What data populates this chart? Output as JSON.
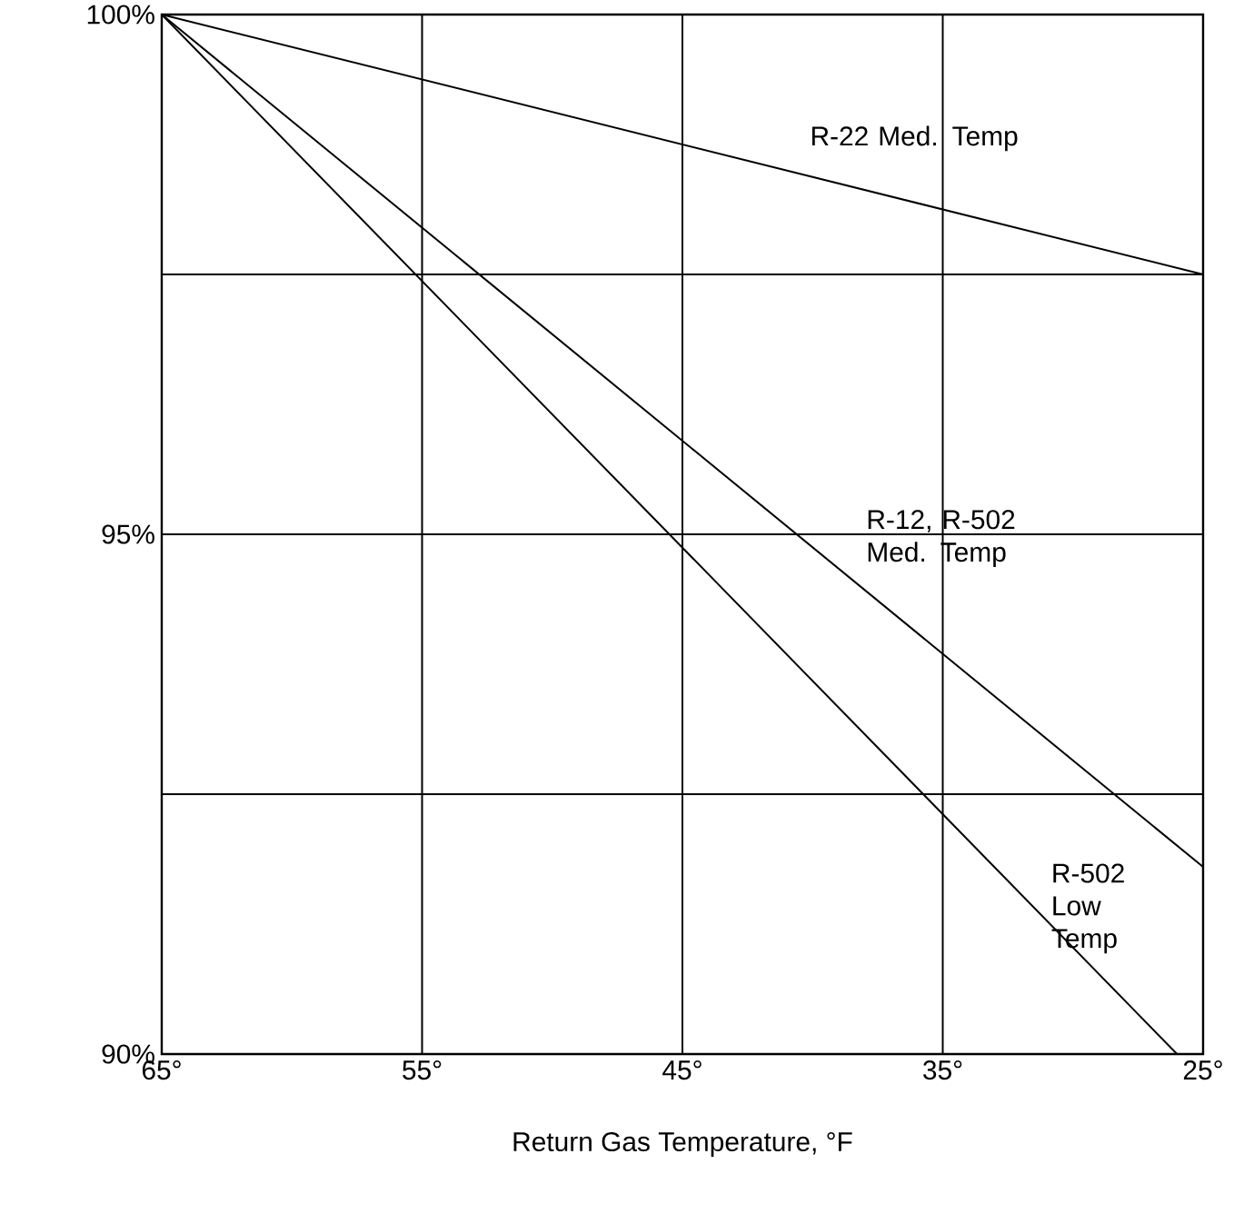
{
  "chart_data": {
    "type": "line",
    "xlabel": "Return Gas Temperature, °F",
    "xlim": [
      65,
      25
    ],
    "ylim": [
      90,
      100
    ],
    "xticks": [
      {
        "value": 65,
        "label": "65°"
      },
      {
        "value": 55,
        "label": "55°"
      },
      {
        "value": 45,
        "label": "45°"
      },
      {
        "value": 35,
        "label": "35°"
      },
      {
        "value": 25,
        "label": "25°"
      }
    ],
    "yticks": [
      {
        "value": 90,
        "label": "90%"
      },
      {
        "value": 92.5,
        "label": null
      },
      {
        "value": 95,
        "label": "95%"
      },
      {
        "value": 97.5,
        "label": null
      },
      {
        "value": 100,
        "label": "100%"
      }
    ],
    "grid": true,
    "marker": "none",
    "line_style": "solid",
    "series": [
      {
        "name": "R-22 Med. Temp",
        "color": "#000000",
        "x": [
          65,
          25
        ],
        "values": [
          100,
          97.5
        ]
      },
      {
        "name": "R-12, R-502 Med. Temp",
        "color": "#000000",
        "x": [
          65,
          25
        ],
        "values": [
          100,
          91.8
        ]
      },
      {
        "name": "R-502 Low Temp",
        "color": "#000000",
        "x": [
          65,
          26
        ],
        "values": [
          100,
          90
        ]
      }
    ]
  }
}
